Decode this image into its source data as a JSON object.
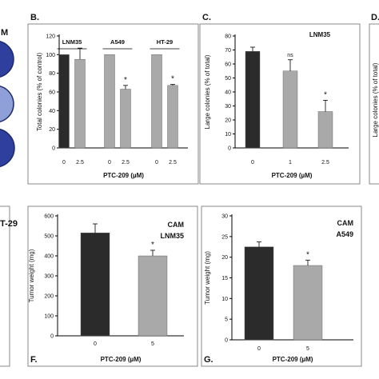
{
  "colors": {
    "dark_bar": "#2b2b2b",
    "light_bar": "#a9a9a9",
    "axis": "#000000",
    "frame": "#888888",
    "dish_blue": "#2f3f9e"
  },
  "panel_a": {
    "letter": "",
    "label_fragment": "M"
  },
  "panel_e": {
    "label_fragment": "T-29"
  },
  "chart_data": [
    {
      "id": "B",
      "letter": "B.",
      "type": "bar",
      "ylabel": "Total colonies (% of control)",
      "xlabel": "PTC-209 (µM)",
      "ylim": [
        0,
        120
      ],
      "yticks": [
        0,
        20,
        40,
        60,
        80,
        100,
        120
      ],
      "groups": [
        {
          "name": "LNM35",
          "categories": [
            "0",
            "2.5"
          ],
          "values": [
            100,
            95
          ],
          "errors": [
            0,
            12
          ],
          "significance": [
            "",
            ""
          ]
        },
        {
          "name": "A549",
          "categories": [
            "0",
            "2.5"
          ],
          "values": [
            100,
            63
          ],
          "errors": [
            0,
            4
          ],
          "significance": [
            "",
            "*"
          ]
        },
        {
          "name": "HT-29",
          "categories": [
            "0",
            "2.5"
          ],
          "values": [
            100,
            67
          ],
          "errors": [
            0,
            1
          ],
          "significance": [
            "",
            "*"
          ]
        }
      ]
    },
    {
      "id": "C",
      "letter": "C.",
      "type": "bar",
      "title": "LNM35",
      "ylabel": "Large colonies (% of total)",
      "xlabel": "PTC-209 (µM)",
      "ylim": [
        0,
        80
      ],
      "yticks": [
        0,
        10,
        20,
        30,
        40,
        50,
        60,
        70,
        80
      ],
      "categories": [
        "0",
        "1",
        "2.5"
      ],
      "values": [
        69,
        55,
        26
      ],
      "errors": [
        3,
        8,
        8
      ],
      "significance": [
        "",
        "ns",
        "*"
      ]
    },
    {
      "id": "D",
      "letter": "D.",
      "type": "bar",
      "ylabel": "Large colonies (% of total)"
    },
    {
      "id": "F",
      "letter": "F.",
      "type": "bar",
      "title_lines": [
        "CAM",
        "LNM35"
      ],
      "ylabel": "Tumor weight (mg)",
      "xlabel": "PTC-209 (µM)",
      "ylim": [
        0,
        600
      ],
      "yticks": [
        0,
        100,
        200,
        300,
        400,
        500,
        600
      ],
      "categories": [
        "0",
        "5"
      ],
      "values": [
        515,
        400
      ],
      "errors": [
        45,
        28
      ],
      "significance": [
        "",
        "*"
      ]
    },
    {
      "id": "G",
      "letter": "G.",
      "type": "bar",
      "title_lines": [
        "CAM",
        "A549"
      ],
      "ylabel": "Tumor weight (mg)",
      "xlabel": "PTC-209 (µM)",
      "ylim": [
        0,
        30
      ],
      "yticks": [
        0,
        5,
        10,
        15,
        20,
        25,
        30
      ],
      "categories": [
        "0",
        "5"
      ],
      "values": [
        22.5,
        18
      ],
      "errors": [
        1.2,
        1.3
      ],
      "significance": [
        "",
        "*"
      ]
    }
  ]
}
